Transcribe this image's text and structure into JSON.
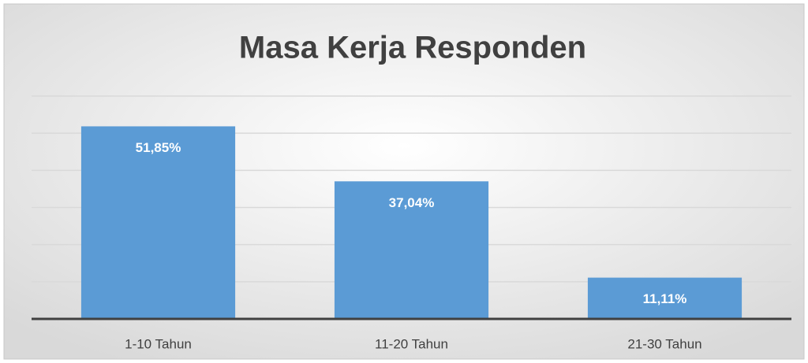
{
  "chart_data": {
    "type": "bar",
    "title": "Masa Kerja Responden",
    "categories": [
      "1-10 Tahun",
      "11-20 Tahun",
      "21-30 Tahun"
    ],
    "values": [
      51.85,
      37.04,
      11.11
    ],
    "value_labels": [
      "51,85%",
      "37,04%",
      "11,11%"
    ],
    "color": "#5b9bd5",
    "ylim": [
      0,
      60
    ],
    "yticks": [
      0,
      10,
      20,
      30,
      40,
      50,
      60
    ],
    "grid": true
  }
}
